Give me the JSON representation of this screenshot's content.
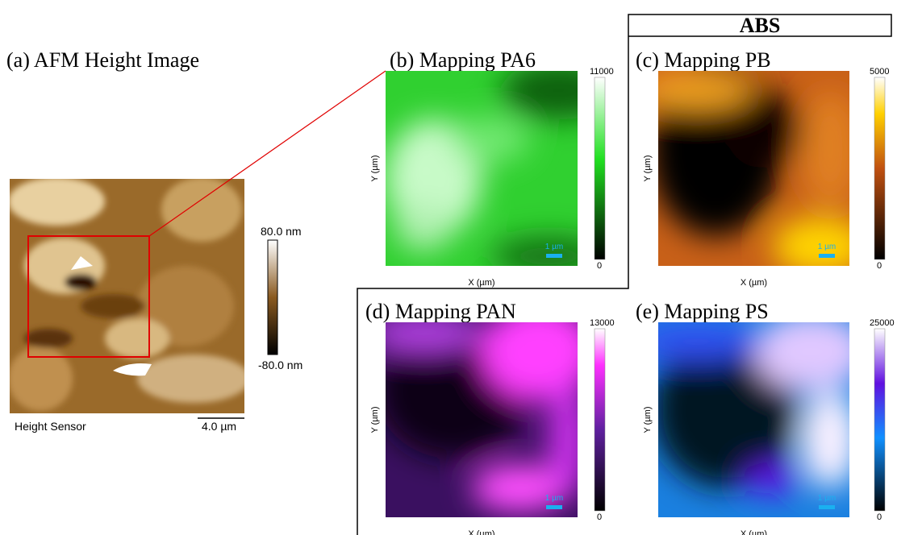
{
  "panel_a": {
    "title": "(a) AFM Height Image",
    "colorbar_max": "80.0 nm",
    "colorbar_min": "-80.0 nm",
    "caption": "Height Sensor",
    "scale_bar": "4.0 µm"
  },
  "group_label": "ABS",
  "panels": [
    {
      "title": "(b) Mapping PA6",
      "colorbar_max": 11000,
      "colorbar_min": 0,
      "scale_bar": "1 µm",
      "x_label": "X (µm)",
      "y_label": "Y (µm)"
    },
    {
      "title": "(c) Mapping PB",
      "colorbar_max": 5000,
      "colorbar_min": 0,
      "scale_bar": "1 µm",
      "x_label": "X (µm)",
      "y_label": "Y (µm)"
    },
    {
      "title": "(d) Mapping PAN",
      "colorbar_max": 13000,
      "colorbar_min": 0,
      "scale_bar": "1 µm",
      "x_label": "X (µm)",
      "y_label": "Y (µm)"
    },
    {
      "title": "(e) Mapping PS",
      "colorbar_max": 25000,
      "colorbar_min": 0,
      "scale_bar": "1 µm",
      "x_label": "X (µm)",
      "y_label": "Y (µm)"
    }
  ]
}
